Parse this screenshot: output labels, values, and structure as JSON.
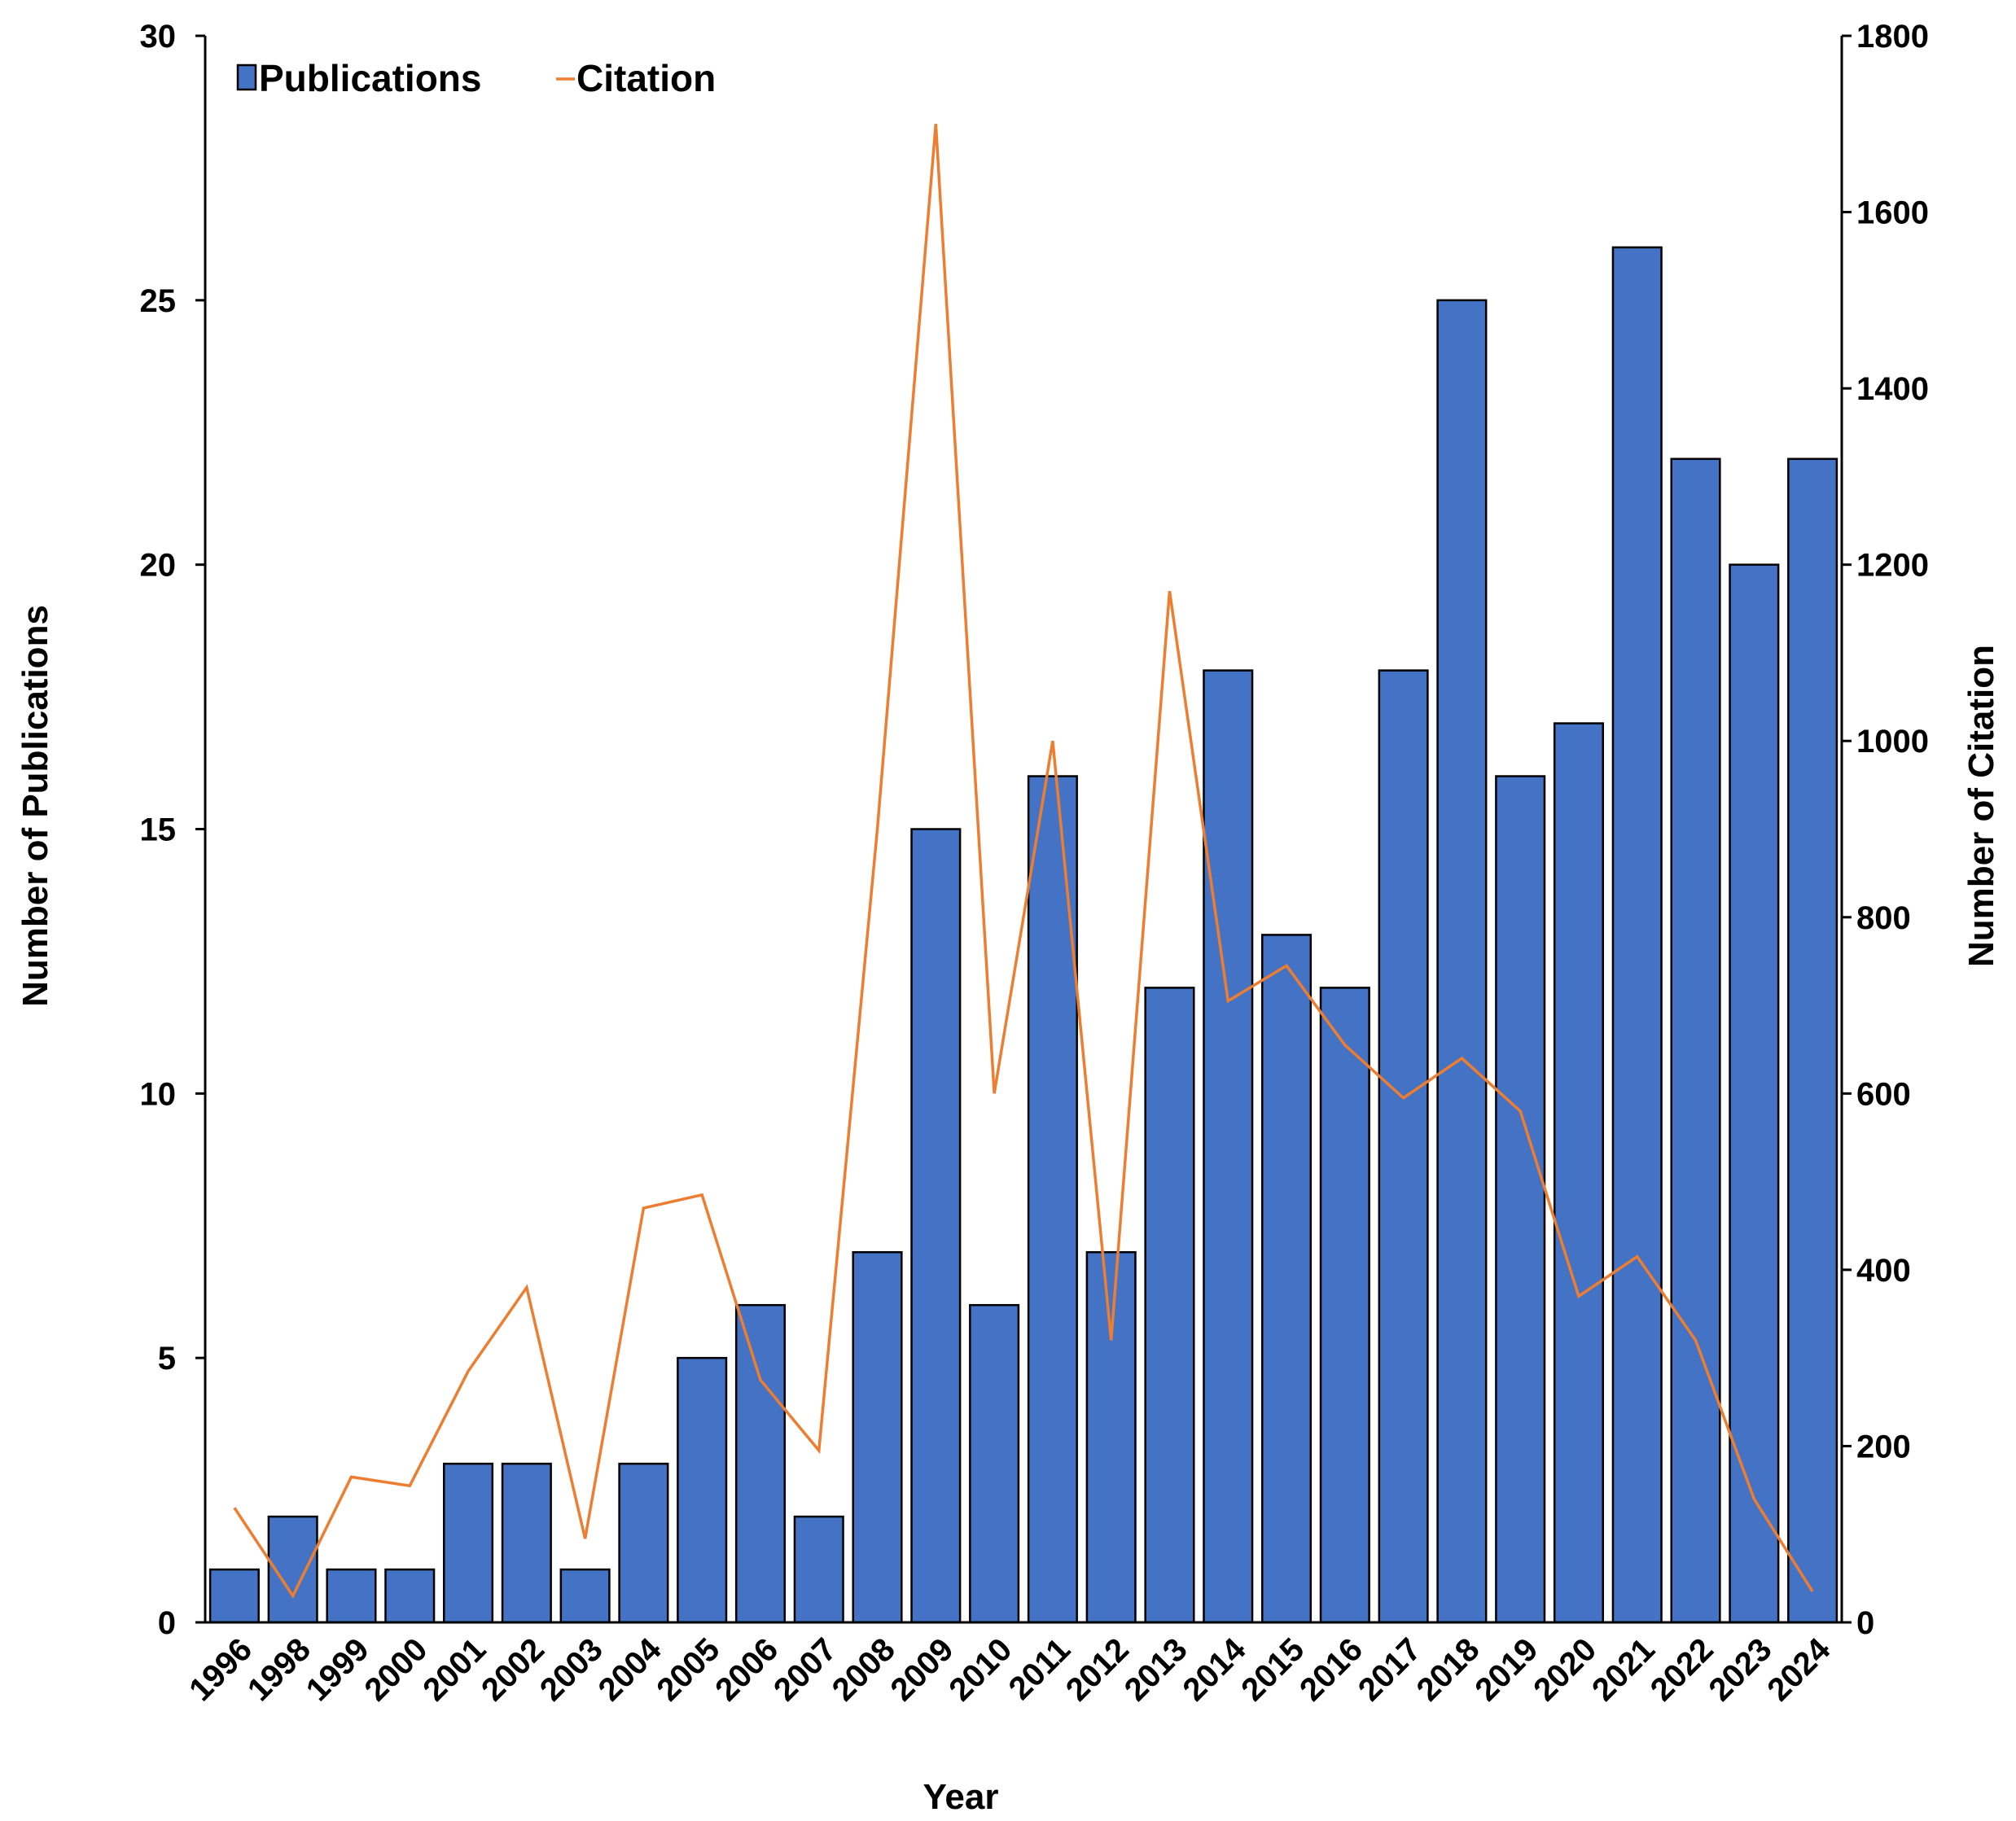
{
  "chart_data": {
    "type": "bar",
    "categories": [
      "1996",
      "1998",
      "1999",
      "2000",
      "2001",
      "2002",
      "2003",
      "2004",
      "2005",
      "2006",
      "2007",
      "2008",
      "2009",
      "2010",
      "2011",
      "2012",
      "2013",
      "2014",
      "2015",
      "2016",
      "2017",
      "2018",
      "2019",
      "2020",
      "2021",
      "2022",
      "2023",
      "2024"
    ],
    "series": [
      {
        "name": "Publications",
        "type": "bar",
        "axis": "left",
        "color": "#4472C4",
        "values": [
          1,
          2,
          1,
          1,
          3,
          3,
          1,
          3,
          5,
          6,
          2,
          7,
          15,
          6,
          16,
          7,
          12,
          18,
          13,
          12,
          18,
          25,
          16,
          17,
          26,
          22,
          20,
          22
        ]
      },
      {
        "name": "Citation",
        "type": "line",
        "axis": "right",
        "color": "#ED7D31",
        "values": [
          130,
          30,
          165,
          155,
          285,
          380,
          95,
          470,
          485,
          275,
          195,
          900,
          1700,
          600,
          1000,
          320,
          1170,
          705,
          745,
          655,
          595,
          640,
          580,
          370,
          415,
          320,
          140,
          35
        ]
      }
    ],
    "legend": {
      "position": "top-left",
      "items": [
        "Publications",
        "Citation"
      ]
    },
    "xlabel": "Year",
    "ylabel_left": "Number of Publications",
    "ylabel_right": "Number of Citation",
    "ylim_left": [
      0,
      30
    ],
    "yticks_left": [
      "0",
      "5",
      "10",
      "15",
      "20",
      "25",
      "30"
    ],
    "ylim_right": [
      0,
      1800
    ],
    "yticks_right": [
      "0",
      "200",
      "400",
      "600",
      "800",
      "1000",
      "1200",
      "1400",
      "1600",
      "1800"
    ],
    "grid": false
  }
}
